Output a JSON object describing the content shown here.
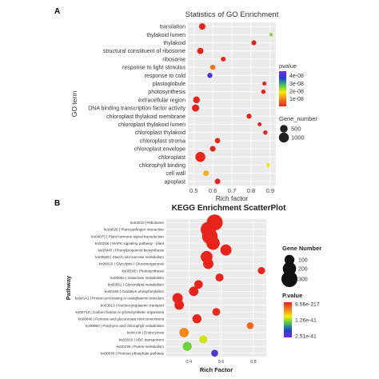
{
  "chart_data": [
    {
      "type": "scatter",
      "panel_label": "A",
      "title": "Statistics of GO Enrichment",
      "xlabel": "Rich factor",
      "ylabel": "GO term",
      "xlim": [
        0.47,
        0.93
      ],
      "xticks": [
        "0.5",
        "0.6",
        "0.7",
        "0.8",
        "0.9"
      ],
      "xtick_values": [
        0.5,
        0.6,
        0.7,
        0.8,
        0.9
      ],
      "background": "#ebebeb",
      "grid": true,
      "legend_position": "right",
      "color_legend": {
        "title": "pvalue",
        "labels": [
          "4e-08",
          "3e-08",
          "2e-08",
          "1e-08"
        ],
        "label_values": [
          4e-08,
          3e-08,
          2e-08,
          1e-08
        ],
        "range": [
          0,
          4.6e-08
        ],
        "colors_low_to_high": [
          "#e8231a",
          "#f57f17",
          "#ffeb00",
          "#43c94e",
          "#1f3fe0",
          "#7a2bd4"
        ]
      },
      "size_legend": {
        "title": "Gene_number",
        "labels": [
          "500",
          "1000"
        ],
        "values": [
          500,
          1000
        ]
      },
      "points": [
        {
          "term": "translation",
          "x": 0.545,
          "gene_number": 310,
          "pvalue": 1e-12
        },
        {
          "term": "thylakoid lumen",
          "x": 0.905,
          "gene_number": 40,
          "pvalue": 2.4e-08
        },
        {
          "term": "thylakoid",
          "x": 0.815,
          "gene_number": 140,
          "pvalue": 1e-12
        },
        {
          "term": "structural constituent of ribosome",
          "x": 0.535,
          "gene_number": 290,
          "pvalue": 1e-12
        },
        {
          "term": "ribosome",
          "x": 0.655,
          "gene_number": 120,
          "pvalue": 1e-12
        },
        {
          "term": "response to light stimulus",
          "x": 0.6,
          "gene_number": 170,
          "pvalue": 8e-09
        },
        {
          "term": "response to cold",
          "x": 0.585,
          "gene_number": 160,
          "pvalue": 4.2e-08
        },
        {
          "term": "plastoglobule",
          "x": 0.87,
          "gene_number": 70,
          "pvalue": 1e-12
        },
        {
          "term": "photosynthesis",
          "x": 0.865,
          "gene_number": 90,
          "pvalue": 1e-12
        },
        {
          "term": "extracellular region",
          "x": 0.515,
          "gene_number": 360,
          "pvalue": 1e-12
        },
        {
          "term": "DNA binding transcription factor activity",
          "x": 0.51,
          "gene_number": 420,
          "pvalue": 1e-12
        },
        {
          "term": "chloroplast thylakoid membrane",
          "x": 0.79,
          "gene_number": 150,
          "pvalue": 1e-12
        },
        {
          "term": "chloroplast thylakoid lumen",
          "x": 0.845,
          "gene_number": 60,
          "pvalue": 1e-12
        },
        {
          "term": "chloroplast thylakoid",
          "x": 0.875,
          "gene_number": 95,
          "pvalue": 1e-12
        },
        {
          "term": "chloroplast stroma",
          "x": 0.625,
          "gene_number": 180,
          "pvalue": 1e-12
        },
        {
          "term": "chloroplast envelope",
          "x": 0.6,
          "gene_number": 220,
          "pvalue": 1e-12
        },
        {
          "term": "chloroplast",
          "x": 0.535,
          "gene_number": 1000,
          "pvalue": 1e-12
        },
        {
          "term": "chlorophyll binding",
          "x": 0.89,
          "gene_number": 50,
          "pvalue": 1.8e-08
        },
        {
          "term": "cell wall",
          "x": 0.565,
          "gene_number": 200,
          "pvalue": 1.3e-08
        },
        {
          "term": "apoplast",
          "x": 0.625,
          "gene_number": 210,
          "pvalue": 1e-12
        }
      ]
    },
    {
      "type": "scatter",
      "panel_label": "B",
      "title": "KEGG Enrichment ScatterPlot",
      "xlabel": "Rich Factor",
      "ylabel": "Pathway",
      "xlim": [
        0.26,
        0.88
      ],
      "xticks": [
        "0.4",
        "0.6",
        "0.8"
      ],
      "xtick_values": [
        0.4,
        0.6,
        0.8
      ],
      "background": "#ebebeb",
      "grid": true,
      "legend_position": "right",
      "size_legend": {
        "title": "Gene Number",
        "labels": [
          "100",
          "200",
          "300"
        ],
        "values": [
          100,
          200,
          300
        ]
      },
      "color_legend": {
        "title": "P.value",
        "labels": [
          "8.56e-217",
          "1.26e-41",
          "2.51e-41"
        ],
        "label_values": [
          0,
          0.5,
          1
        ],
        "range": [
          0,
          1
        ],
        "colors_low_to_high": [
          "#e8231a",
          "#f57f17",
          "#ffeb00",
          "#43c94e",
          "#1f3fe0",
          "#7a2bd4"
        ]
      },
      "points": [
        {
          "pathway": "ko03010 | Ribosome",
          "x": 0.56,
          "gene_number": 300,
          "pvalue_scale": 0.0
        },
        {
          "pathway": "ko04626 | Plant-pathogen interaction",
          "x": 0.52,
          "gene_number": 260,
          "pvalue_scale": 0.0
        },
        {
          "pathway": "ko04075 | Plant hormone signal transduction",
          "x": 0.53,
          "gene_number": 280,
          "pvalue_scale": 0.0
        },
        {
          "pathway": "ko04016 | MAPK signaling pathway - plant",
          "x": 0.55,
          "gene_number": 200,
          "pvalue_scale": 0.0
        },
        {
          "pathway": "ko00940 | Phenylpropanoid biosynthesis",
          "x": 0.63,
          "gene_number": 130,
          "pvalue_scale": 0.0
        },
        {
          "pathway": "ko00500 | Starch and sucrose metabolism",
          "x": 0.51,
          "gene_number": 150,
          "pvalue_scale": 0.0
        },
        {
          "pathway": "ko00010 | Glycolysis / Gluconeogenesis",
          "x": 0.52,
          "gene_number": 110,
          "pvalue_scale": 0.0
        },
        {
          "pathway": "ko00195 | Photosynthesis",
          "x": 0.85,
          "gene_number": 45,
          "pvalue_scale": 0.0
        },
        {
          "pathway": "ko00052 | Galactose metabolism",
          "x": 0.59,
          "gene_number": 60,
          "pvalue_scale": 0.0
        },
        {
          "pathway": "ko00561 | Glycerolipid metabolism",
          "x": 0.46,
          "gene_number": 70,
          "pvalue_scale": 0.0
        },
        {
          "pathway": "ko00190 | Oxidative phosphorylation",
          "x": 0.43,
          "gene_number": 90,
          "pvalue_scale": 0.0
        },
        {
          "pathway": "ko04141 | Protein processing in endoplasmic reticulum",
          "x": 0.33,
          "gene_number": 110,
          "pvalue_scale": 0.0
        },
        {
          "pathway": "ko03013 | Nucleocytoplasmic transport",
          "x": 0.34,
          "gene_number": 90,
          "pvalue_scale": 0.0
        },
        {
          "pathway": "ko00710 | Carbon fixation in photosynthetic organisms",
          "x": 0.57,
          "gene_number": 55,
          "pvalue_scale": 0.02
        },
        {
          "pathway": "ko00040 | Pentose and glucuronate interconversions",
          "x": 0.45,
          "gene_number": 80,
          "pvalue_scale": 0.0
        },
        {
          "pathway": "ko00860 | Porphyrin and chlorophyll metabolism",
          "x": 0.78,
          "gene_number": 40,
          "pvalue_scale": 0.15
        },
        {
          "pathway": "ko04144 | Endocytosis",
          "x": 0.37,
          "gene_number": 90,
          "pvalue_scale": 0.22
        },
        {
          "pathway": "ko03010 | ABC transporters",
          "x": 0.49,
          "gene_number": 60,
          "pvalue_scale": 0.45
        },
        {
          "pathway": "ko00230 | Purine metabolism",
          "x": 0.39,
          "gene_number": 80,
          "pvalue_scale": 0.55
        },
        {
          "pathway": "ko00030 | Pentose phosphate pathway",
          "x": 0.56,
          "gene_number": 40,
          "pvalue_scale": 0.9
        }
      ]
    }
  ]
}
